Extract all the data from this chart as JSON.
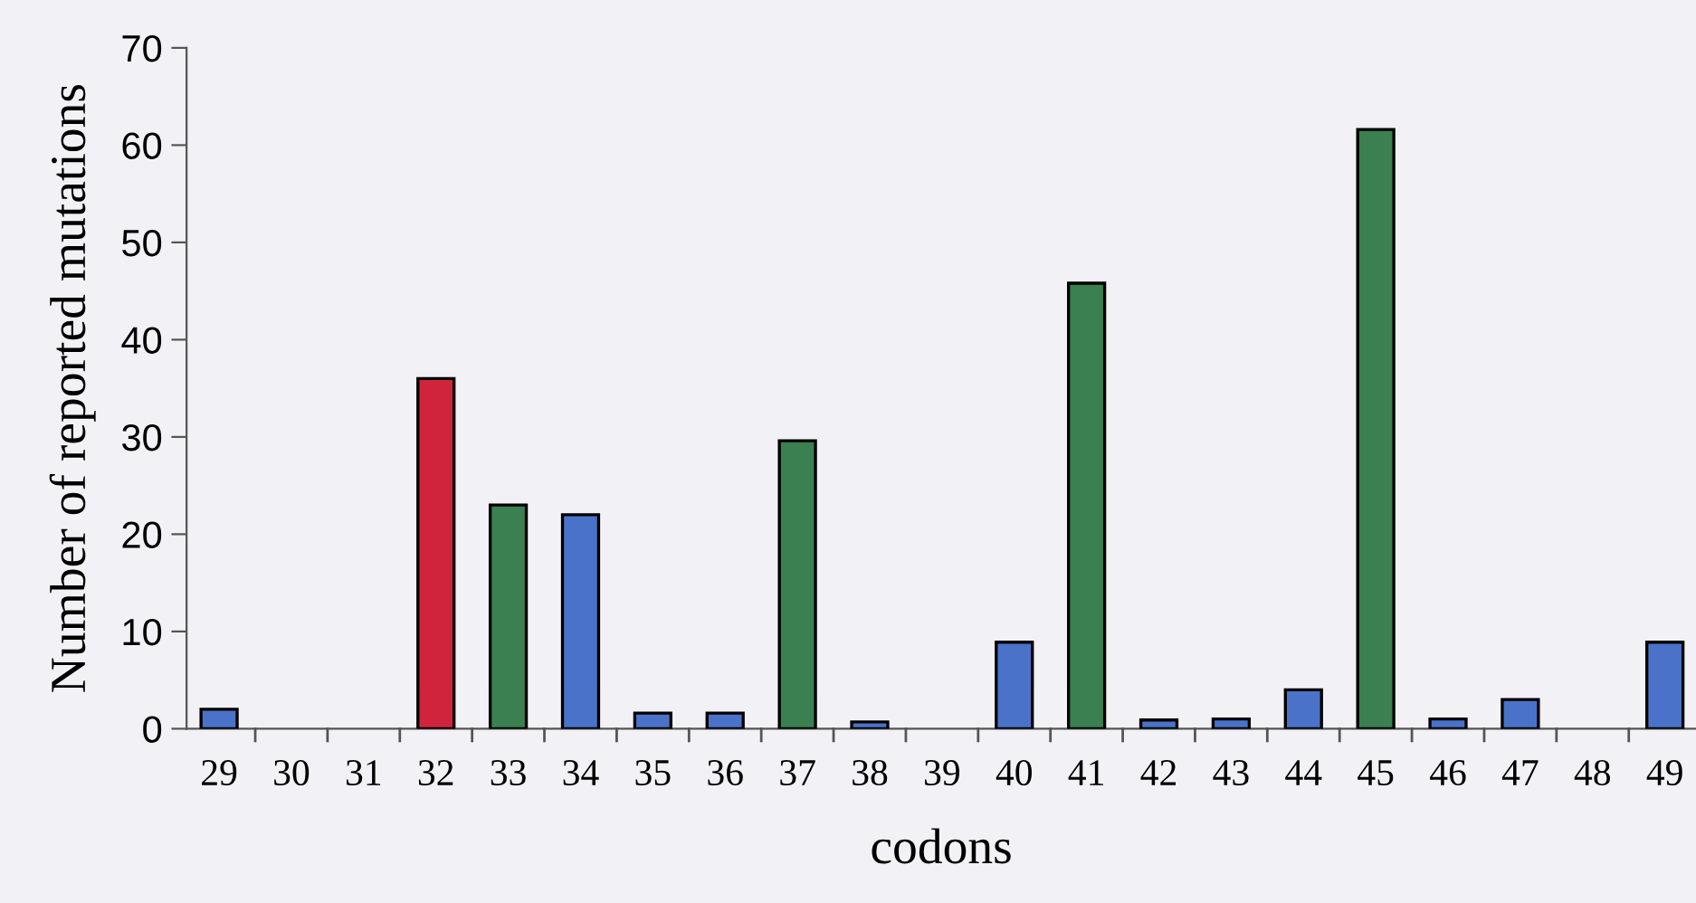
{
  "chart_data": {
    "type": "bar",
    "xlabel": "codons",
    "ylabel": "Number of reported mutations",
    "categories": [
      "29",
      "30",
      "31",
      "32",
      "33",
      "34",
      "35",
      "36",
      "37",
      "38",
      "39",
      "40",
      "41",
      "42",
      "43",
      "44",
      "45",
      "46",
      "47",
      "48",
      "49"
    ],
    "values": [
      2,
      0,
      0,
      36,
      23,
      22,
      1.6,
      1.6,
      29.6,
      0.7,
      0,
      8.9,
      45.8,
      0.9,
      1,
      4,
      61.6,
      1,
      3,
      0,
      8.9
    ],
    "colors": [
      "#4a72c8",
      "#4a72c8",
      "#4a72c8",
      "#d0243c",
      "#3a8050",
      "#4a72c8",
      "#4a72c8",
      "#4a72c8",
      "#3a8050",
      "#4a72c8",
      "#4a72c8",
      "#4a72c8",
      "#3a8050",
      "#4a72c8",
      "#4a72c8",
      "#4a72c8",
      "#3a8050",
      "#4a72c8",
      "#4a72c8",
      "#4a72c8",
      "#4a72c8"
    ],
    "ylim": [
      0,
      70
    ],
    "yticks": [
      0,
      10,
      20,
      30,
      40,
      50,
      60,
      70
    ],
    "grid": false,
    "legend": false
  }
}
